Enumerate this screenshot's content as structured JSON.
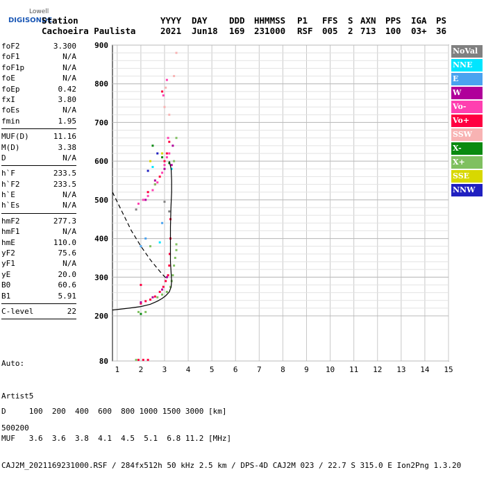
{
  "logo": {
    "line1": "Lowell",
    "line2": "DIGISONDE"
  },
  "header": {
    "labels": [
      "Station",
      "YYYY",
      "DAY",
      "DDD",
      "HHMMSS",
      "P1",
      "FFS",
      "S",
      "AXN",
      "PPS",
      "IGA",
      "PS"
    ],
    "values": [
      "Cachoeira Paulista",
      "2021",
      "Jun18",
      "169",
      "231000",
      "RSF",
      "005",
      "2",
      "713",
      "100",
      "03+",
      "36"
    ]
  },
  "params": [
    {
      "group": [
        {
          "k": "foF2",
          "v": "3.300"
        },
        {
          "k": "foF1",
          "v": "N/A"
        },
        {
          "k": "foF1p",
          "v": "N/A"
        },
        {
          "k": "foE",
          "v": "N/A"
        },
        {
          "k": "foEp",
          "v": "0.42"
        },
        {
          "k": "fxI",
          "v": "3.80"
        },
        {
          "k": "foEs",
          "v": "N/A"
        },
        {
          "k": "fmin",
          "v": "1.95"
        }
      ]
    },
    {
      "group": [
        {
          "k": "MUF(D)",
          "v": "11.16"
        },
        {
          "k": "M(D)",
          "v": "3.38"
        },
        {
          "k": "D",
          "v": "N/A"
        }
      ]
    },
    {
      "group": [
        {
          "k": "h`F",
          "v": "233.5"
        },
        {
          "k": "h`F2",
          "v": "233.5"
        },
        {
          "k": "h`E",
          "v": "N/A"
        },
        {
          "k": "h`Es",
          "v": "N/A"
        }
      ]
    },
    {
      "group": [
        {
          "k": "hmF2",
          "v": "277.3"
        },
        {
          "k": "hmF1",
          "v": "N/A"
        },
        {
          "k": "hmE",
          "v": "110.0"
        },
        {
          "k": "yF2",
          "v": "75.6"
        },
        {
          "k": "yF1",
          "v": "N/A"
        },
        {
          "k": "yE",
          "v": "20.0"
        },
        {
          "k": "B0",
          "v": "60.6"
        },
        {
          "k": "B1",
          "v": "5.91"
        }
      ]
    },
    {
      "group": [
        {
          "k": "C-level",
          "v": "22"
        }
      ]
    }
  ],
  "auto": {
    "line1": "Auto:",
    "line2": "Artist5",
    "line3": "500200"
  },
  "legend": [
    {
      "label": "NoVal",
      "color": "#808080"
    },
    {
      "label": "NNE",
      "color": "#00e5ff"
    },
    {
      "label": "E",
      "color": "#4aa3f0"
    },
    {
      "label": "W",
      "color": "#b0009a"
    },
    {
      "label": "Vo-",
      "color": "#ff3fb0"
    },
    {
      "label": "Vo+",
      "color": "#ff0040"
    },
    {
      "label": "SSW",
      "color": "#f8b3b3"
    },
    {
      "label": "X-",
      "color": "#0a8a10"
    },
    {
      "label": "X+",
      "color": "#7fc060"
    },
    {
      "label": "SSE",
      "color": "#d8d800"
    },
    {
      "label": "NNW",
      "color": "#2020c0"
    }
  ],
  "footer": {
    "row1": "D     100  200  400  600  800 1000 1500 3000 [km]",
    "row2": "MUF   3.6  3.6  3.8  4.1  4.5  5.1  6.8 11.2 [MHz]",
    "row3": "CAJ2M_2021169231000.RSF / 284fx512h 50 kHz 2.5 km / DPS-4D CAJ2M 023 / 22.7 S 315.0 E Ion2Png 1.3.20"
  },
  "chart_data": {
    "type": "scatter",
    "title": "",
    "xlabel": "",
    "ylabel": "",
    "xlim": [
      0.8,
      15.0
    ],
    "ylim": [
      80,
      900
    ],
    "x_ticks": [
      1,
      2,
      3,
      4,
      5,
      6,
      7,
      8,
      9,
      10,
      11,
      12,
      13,
      14,
      15
    ],
    "y_ticks": [
      80,
      200,
      300,
      400,
      500,
      600,
      700,
      800,
      900
    ],
    "grid": true,
    "legend_position": "right",
    "series": [
      {
        "name": "Vo+",
        "color": "#ff0040",
        "points": [
          [
            2.0,
            232
          ],
          [
            2.2,
            238
          ],
          [
            2.4,
            242
          ],
          [
            2.6,
            250
          ],
          [
            2.8,
            262
          ],
          [
            2.95,
            275
          ],
          [
            3.05,
            290
          ],
          [
            3.15,
            305
          ],
          [
            3.2,
            330
          ],
          [
            3.22,
            360
          ],
          [
            3.25,
            400
          ],
          [
            3.25,
            450
          ],
          [
            1.9,
            83
          ],
          [
            2.1,
            83
          ],
          [
            2.3,
            83
          ],
          [
            2.0,
            280
          ],
          [
            2.3,
            520
          ],
          [
            2.6,
            540
          ],
          [
            2.8,
            560
          ],
          [
            3.0,
            600
          ],
          [
            3.1,
            620
          ],
          [
            3.2,
            650
          ],
          [
            2.9,
            780
          ]
        ]
      },
      {
        "name": "Vo-",
        "color": "#ff3fb0",
        "points": [
          [
            1.9,
            490
          ],
          [
            2.1,
            500
          ],
          [
            2.3,
            510
          ],
          [
            2.5,
            525
          ],
          [
            2.7,
            545
          ],
          [
            2.9,
            570
          ],
          [
            3.0,
            590
          ],
          [
            3.1,
            610
          ],
          [
            3.2,
            620
          ],
          [
            3.15,
            660
          ],
          [
            3.1,
            810
          ],
          [
            2.95,
            770
          ]
        ]
      },
      {
        "name": "W",
        "color": "#b0009a",
        "points": [
          [
            2.0,
            235
          ],
          [
            2.5,
            248
          ],
          [
            2.9,
            268
          ],
          [
            3.1,
            300
          ],
          [
            2.2,
            500
          ],
          [
            2.6,
            550
          ],
          [
            3.0,
            580
          ],
          [
            3.3,
            590
          ],
          [
            3.35,
            640
          ]
        ]
      },
      {
        "name": "X+",
        "color": "#7fc060",
        "points": [
          [
            2.7,
            248
          ],
          [
            2.9,
            255
          ],
          [
            3.1,
            262
          ],
          [
            3.25,
            275
          ],
          [
            3.3,
            290
          ],
          [
            3.35,
            305
          ],
          [
            3.4,
            330
          ],
          [
            3.45,
            350
          ],
          [
            3.5,
            370
          ],
          [
            3.5,
            385
          ],
          [
            1.9,
            210
          ],
          [
            2.2,
            210
          ],
          [
            2.4,
            380
          ],
          [
            2.6,
            540
          ],
          [
            3.5,
            660
          ],
          [
            3.4,
            600
          ],
          [
            1.8,
            83
          ]
        ]
      },
      {
        "name": "X-",
        "color": "#0a8a10",
        "points": [
          [
            2.5,
            640
          ],
          [
            2.9,
            610
          ],
          [
            3.2,
            595
          ],
          [
            2.0,
            205
          ]
        ]
      },
      {
        "name": "NNE",
        "color": "#00e5ff",
        "points": [
          [
            2.8,
            390
          ],
          [
            3.3,
            580
          ],
          [
            2.5,
            585
          ]
        ]
      },
      {
        "name": "E",
        "color": "#4aa3f0",
        "points": [
          [
            2.0,
            380
          ],
          [
            2.2,
            400
          ],
          [
            2.9,
            440
          ]
        ]
      },
      {
        "name": "SSW",
        "color": "#f8b3b3",
        "points": [
          [
            3.0,
            740
          ],
          [
            3.05,
            790
          ],
          [
            3.4,
            820
          ],
          [
            3.5,
            880
          ],
          [
            3.2,
            720
          ]
        ]
      },
      {
        "name": "SSE",
        "color": "#d8d800",
        "points": [
          [
            2.4,
            600
          ],
          [
            2.9,
            620
          ]
        ]
      },
      {
        "name": "NNW",
        "color": "#2020c0",
        "points": [
          [
            2.3,
            575
          ],
          [
            2.7,
            620
          ]
        ]
      },
      {
        "name": "NoVal",
        "color": "#808080",
        "points": [
          [
            1.8,
            475
          ],
          [
            3.0,
            495
          ],
          [
            3.2,
            470
          ]
        ]
      }
    ],
    "profile": [
      [
        0.8,
        215
      ],
      [
        1.5,
        220
      ],
      [
        2.0,
        224
      ],
      [
        2.4,
        230
      ],
      [
        2.7,
        238
      ],
      [
        2.9,
        245
      ],
      [
        3.05,
        252
      ],
      [
        3.2,
        262
      ],
      [
        3.28,
        275
      ],
      [
        3.3,
        290
      ],
      [
        3.28,
        310
      ],
      [
        3.25,
        340
      ],
      [
        3.25,
        380
      ],
      [
        3.25,
        430
      ],
      [
        3.27,
        480
      ],
      [
        3.3,
        520
      ],
      [
        3.3,
        550
      ],
      [
        3.28,
        580
      ],
      [
        3.2,
        600
      ]
    ],
    "profile_extension": [
      [
        0.8,
        520
      ],
      [
        1.2,
        470
      ],
      [
        1.6,
        420
      ],
      [
        2.0,
        380
      ],
      [
        2.4,
        345
      ],
      [
        2.8,
        315
      ],
      [
        3.1,
        295
      ]
    ]
  }
}
